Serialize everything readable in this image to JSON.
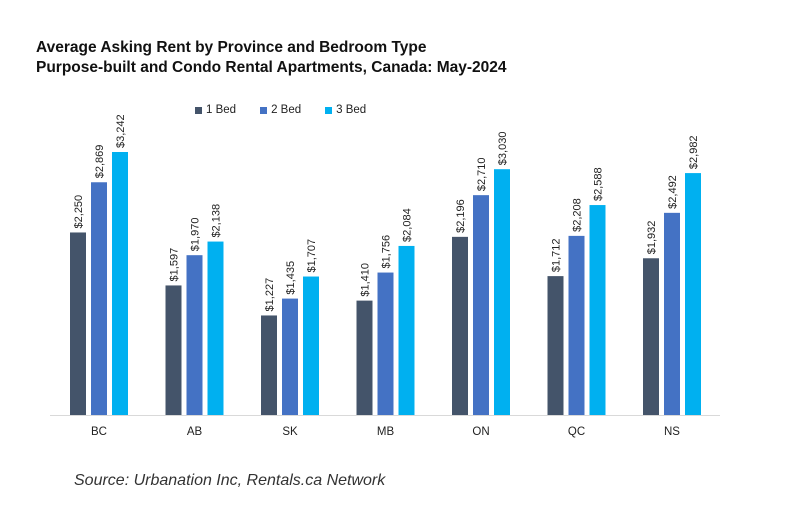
{
  "chart_data": {
    "type": "bar",
    "title": "Average Asking Rent by Province and Bedroom Type",
    "subtitle": "Purpose-built and Condo Rental Apartments, Canada: May-2024",
    "categories": [
      "BC",
      "AB",
      "SK",
      "MB",
      "ON",
      "QC",
      "NS"
    ],
    "series": [
      {
        "name": "1 Bed",
        "color": "#44546A",
        "values": [
          2250,
          1597,
          1227,
          1410,
          2196,
          1712,
          1932
        ],
        "labels": [
          "$2,250",
          "$1,597",
          "$1,227",
          "$1,410",
          "$2,196",
          "$1,712",
          "$1,932"
        ]
      },
      {
        "name": "2 Bed",
        "color": "#4472C4",
        "values": [
          2869,
          1970,
          1435,
          1756,
          2710,
          2208,
          2492
        ],
        "labels": [
          "$2,869",
          "$1,970",
          "$1,435",
          "$1,756",
          "$2,710",
          "$2,208",
          "$2,492"
        ]
      },
      {
        "name": "3 Bed",
        "color": "#00B0F0",
        "values": [
          3242,
          2138,
          1707,
          2084,
          3030,
          2588,
          2982
        ],
        "labels": [
          "$3,242",
          "$2,138",
          "$1,707",
          "$2,084",
          "$3,030",
          "$2,588",
          "$2,982"
        ]
      }
    ],
    "ylim": [
      0,
      3242
    ],
    "grid": false,
    "legend": "top-left",
    "source": "Source: Urbanation Inc, Rentals.ca Network"
  }
}
